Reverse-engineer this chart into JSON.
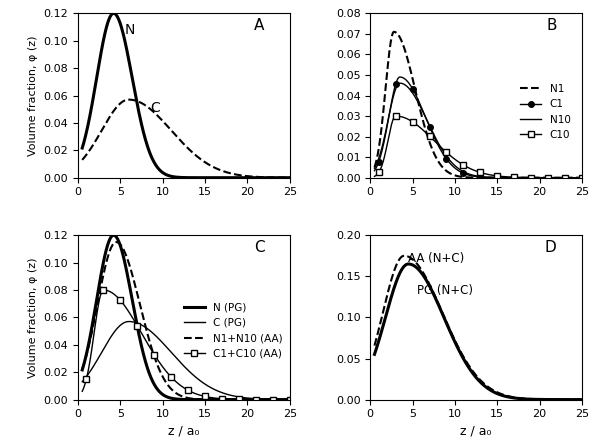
{
  "panel_A_label": "A",
  "panel_B_label": "B",
  "panel_C_label": "C",
  "panel_D_label": "D",
  "xlabel": "z / a₀",
  "ylabel": "Volume fraction, φ (z)",
  "xlim": [
    0,
    25
  ],
  "A_ylim": [
    0,
    0.12
  ],
  "B_ylim": [
    0,
    0.08
  ],
  "C_ylim": [
    0,
    0.12
  ],
  "D_ylim": [
    0,
    0.2
  ],
  "xticks": [
    0,
    5,
    10,
    15,
    20,
    25
  ],
  "A_yticks": [
    0,
    0.02,
    0.04,
    0.06,
    0.08,
    0.1,
    0.12
  ],
  "B_yticks": [
    0,
    0.01,
    0.02,
    0.03,
    0.04,
    0.05,
    0.06,
    0.07,
    0.08
  ],
  "C_yticks": [
    0,
    0.02,
    0.04,
    0.06,
    0.08,
    0.1,
    0.12
  ],
  "D_yticks": [
    0,
    0.05,
    0.1,
    0.15,
    0.2
  ]
}
